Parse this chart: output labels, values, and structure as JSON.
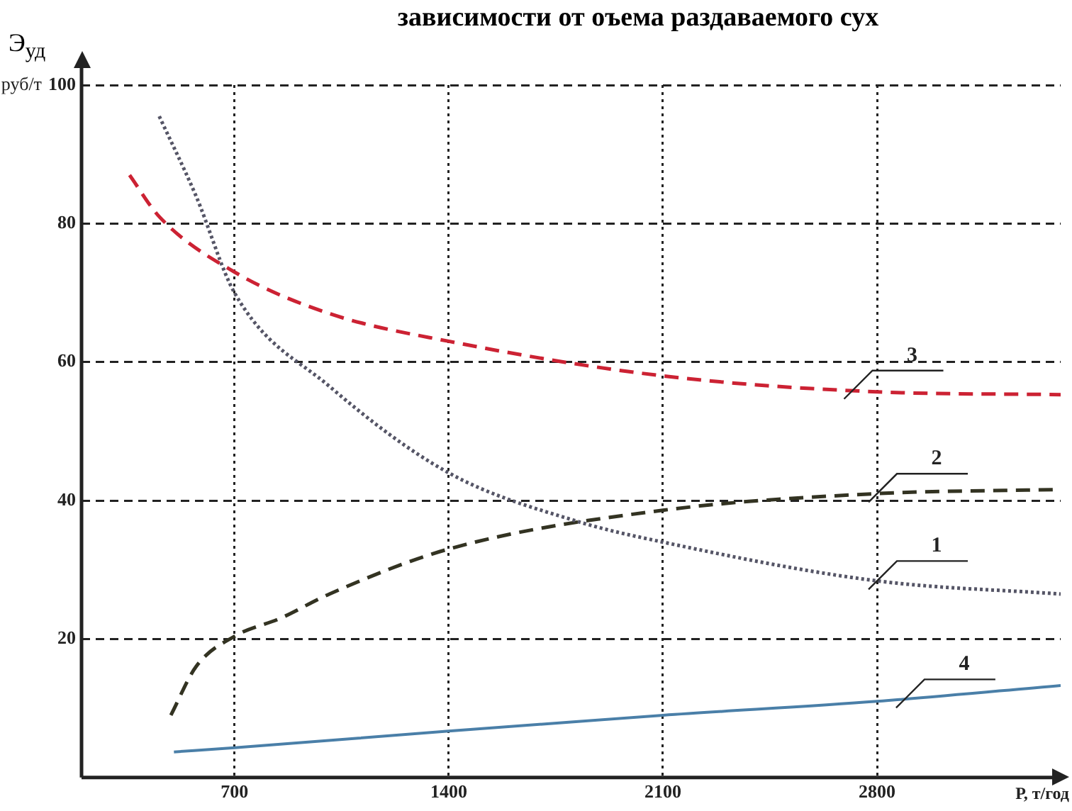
{
  "chart_data": {
    "type": "line",
    "title": "зависимости от оъема раздаваемого сух",
    "ylabel": "Э$_{уд}$",
    "xlabel": "Р, т/год",
    "xlim": [
      200,
      3400
    ],
    "xticks": [
      700,
      1400,
      2100,
      2800
    ],
    "ylim": [
      0,
      100
    ],
    "yticks": [
      20,
      40,
      60,
      80,
      100
    ],
    "grid": true,
    "legend": false,
    "marker": "none",
    "series": [
      {
        "color": "#555566",
        "line_style": "dotted",
        "x": [
          454,
          574,
          700,
          1010,
          1400,
          1820,
          2100,
          2800,
          3400
        ],
        "values": [
          95.5,
          84,
          70,
          56.5,
          44,
          37,
          34,
          28.4,
          26.5
        ]
      },
      {
        "color": "#333322",
        "line_style": "dashed",
        "x": [
          492,
          574,
          700,
          850,
          1010,
          1400,
          2100,
          2800,
          3400
        ],
        "values": [
          9,
          16,
          20.4,
          23,
          26.5,
          33,
          38.6,
          41,
          41.6
        ]
      },
      {
        "color": "#cc2233",
        "line_style": "dashed",
        "x": [
          357,
          454,
          700,
          1010,
          1400,
          2100,
          2800,
          3400
        ],
        "values": [
          87,
          81,
          73,
          67,
          63,
          58,
          55.7,
          55.3
        ]
      },
      {
        "color": "#4a7fa8",
        "line_style": "solid",
        "x": [
          502,
          700,
          1400,
          2100,
          2800,
          3400
        ],
        "values": [
          3.7,
          4.3,
          6.7,
          9,
          11,
          13.3
        ]
      }
    ],
    "annotations": [
      {
        "text": "1",
        "x": 2800,
        "y": 28.4
      },
      {
        "text": "2",
        "x": 2800,
        "y": 41
      },
      {
        "text": "3",
        "x": 2720,
        "y": 55.9
      },
      {
        "text": "4",
        "x": 2890,
        "y": 11.3
      },
      "руб/т"
    ]
  }
}
